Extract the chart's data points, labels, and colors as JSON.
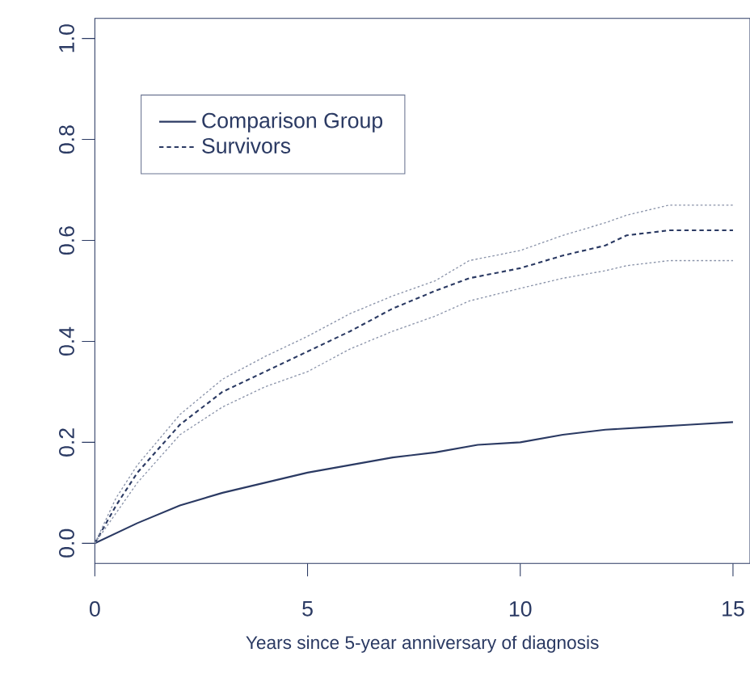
{
  "chart_data": {
    "type": "line",
    "xlabel": "Years since 5-year anniversary of diagnosis",
    "xlim": [
      0,
      15.4
    ],
    "ylim": [
      -0.04,
      1.04
    ],
    "xticks": [
      0,
      5,
      10,
      15
    ],
    "yticks": [
      {
        "value": 0,
        "label": "0.0"
      },
      {
        "value": 0.2,
        "label": "0.2"
      },
      {
        "value": 0.4,
        "label": "0.4"
      },
      {
        "value": 0.6,
        "label": "0.6"
      },
      {
        "value": 0.8,
        "label": "0.8"
      },
      {
        "value": 1,
        "label": "1.0"
      }
    ],
    "legend": "top left",
    "grid": false,
    "series": [
      {
        "name": "Comparison Group",
        "color": "#2b3a63",
        "line_style": "solid",
        "x": [
          0,
          1,
          2,
          3,
          4,
          5,
          6,
          7,
          8,
          9,
          10,
          11,
          12,
          13,
          14,
          15
        ],
        "values": [
          0,
          0.04,
          0.075,
          0.1,
          0.12,
          0.14,
          0.155,
          0.17,
          0.18,
          0.195,
          0.2,
          0.215,
          0.225,
          0.23,
          0.235,
          0.24
        ]
      },
      {
        "name": "Survivors",
        "color": "#2b3a63",
        "line_style": "dashed",
        "x": [
          0,
          0.5,
          1,
          2,
          3,
          4,
          5,
          6,
          7,
          8,
          8.8,
          10,
          11,
          12,
          12.5,
          13.5,
          15
        ],
        "values": [
          0,
          0.075,
          0.14,
          0.235,
          0.3,
          0.34,
          0.38,
          0.42,
          0.465,
          0.5,
          0.525,
          0.545,
          0.57,
          0.59,
          0.61,
          0.62,
          0.62
        ]
      },
      {
        "color": "#8a93a9",
        "line_style": "dotted",
        "x": [
          0,
          0.5,
          1,
          2,
          3,
          4,
          5,
          6,
          7,
          8,
          8.8,
          10,
          11,
          12,
          12.5,
          13.5,
          15
        ],
        "values": [
          0,
          0.06,
          0.12,
          0.215,
          0.27,
          0.31,
          0.34,
          0.385,
          0.42,
          0.45,
          0.48,
          0.505,
          0.525,
          0.54,
          0.55,
          0.56,
          0.56
        ]
      },
      {
        "color": "#8a93a9",
        "line_style": "dotted",
        "x": [
          0,
          0.5,
          1,
          2,
          3,
          4,
          5,
          6,
          7,
          8,
          8.8,
          10,
          11,
          12,
          12.5,
          13.5,
          15
        ],
        "values": [
          0,
          0.09,
          0.155,
          0.255,
          0.325,
          0.37,
          0.41,
          0.455,
          0.49,
          0.52,
          0.56,
          0.58,
          0.61,
          0.635,
          0.65,
          0.67,
          0.67
        ]
      }
    ]
  }
}
